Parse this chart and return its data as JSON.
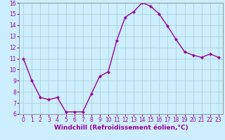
{
  "x": [
    0,
    1,
    2,
    3,
    4,
    5,
    6,
    7,
    8,
    9,
    10,
    11,
    12,
    13,
    14,
    15,
    16,
    17,
    18,
    19,
    20,
    21,
    22,
    23
  ],
  "y": [
    11,
    9,
    7.5,
    7.3,
    7.5,
    6.2,
    6.2,
    6.2,
    7.8,
    9.4,
    9.8,
    12.6,
    14.7,
    15.2,
    16.0,
    15.7,
    15.0,
    13.9,
    12.7,
    11.6,
    11.3,
    11.1,
    11.4,
    11.1
  ],
  "line_color": "#990099",
  "marker": "D",
  "marker_size": 2.0,
  "bg_color": "#cceeff",
  "grid_color": "#aacccc",
  "xlabel": "Windchill (Refroidissement éolien,°C)",
  "xlabel_color": "#990099",
  "tick_color": "#990099",
  "ylim": [
    6,
    16
  ],
  "yticks": [
    6,
    7,
    8,
    9,
    10,
    11,
    12,
    13,
    14,
    15,
    16
  ],
  "xticks": [
    0,
    1,
    2,
    3,
    4,
    5,
    6,
    7,
    8,
    9,
    10,
    11,
    12,
    13,
    14,
    15,
    16,
    17,
    18,
    19,
    20,
    21,
    22,
    23
  ],
  "spine_color": "#888888",
  "line_width": 1.0,
  "xlabel_fontsize": 6.5,
  "tick_fontsize": 5.5
}
